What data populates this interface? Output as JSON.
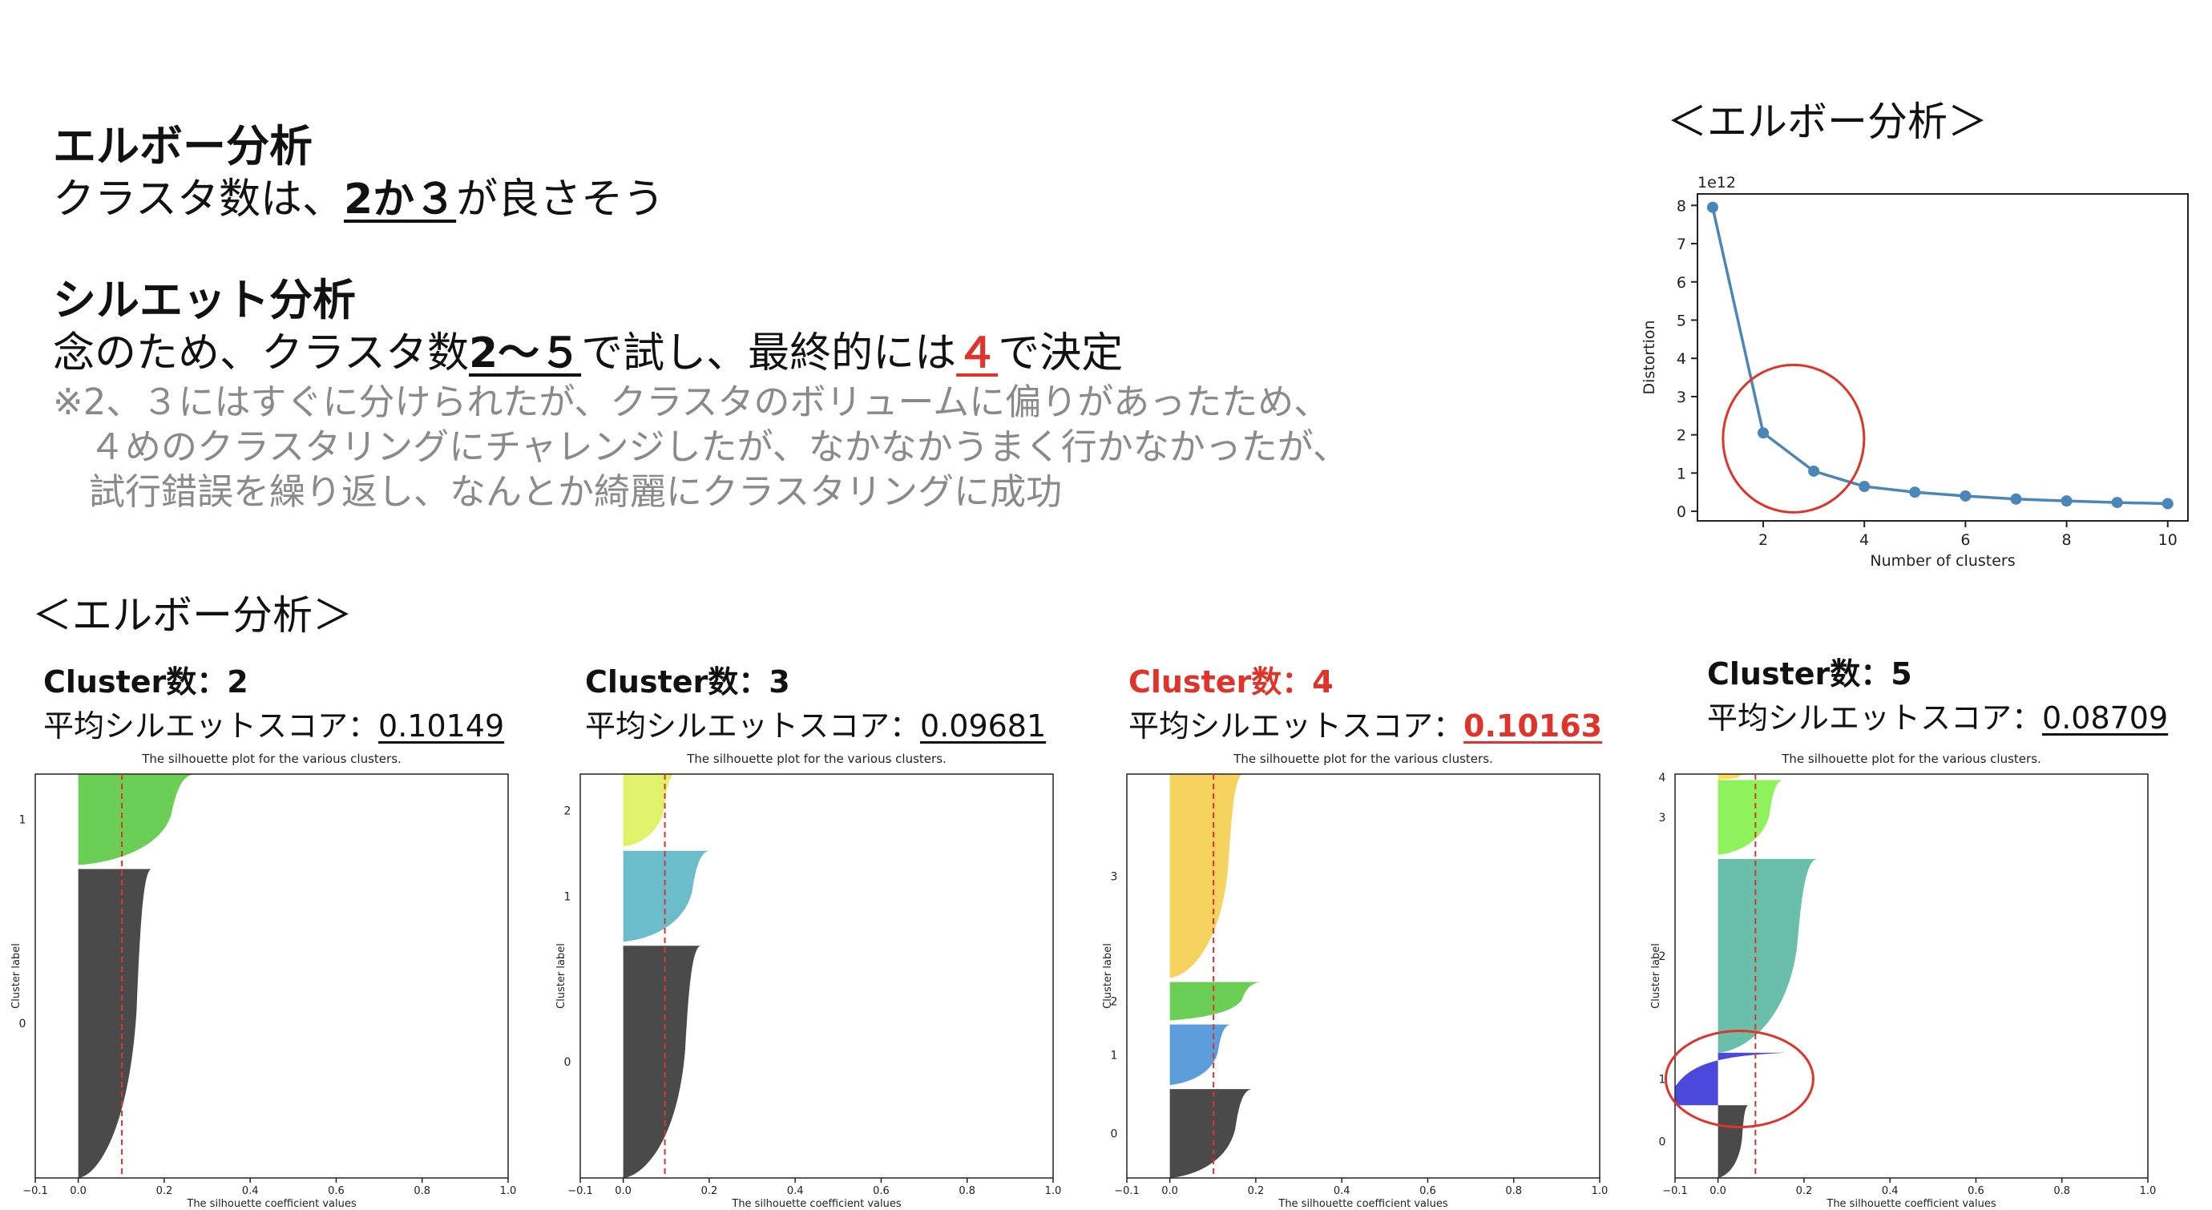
{
  "elbow_title": "エルボー分析",
  "elbow_text_pre": "クラスタ数は、",
  "elbow_text_em": "2か３",
  "elbow_text_post": "が良さそう",
  "silhouette_title": "シルエット分析",
  "silhouette_text_pre": "念のため、クラスタ数",
  "silhouette_text_em": "2〜５",
  "silhouette_text_mid": "で試し、最終的には",
  "silhouette_text_final": "４",
  "silhouette_text_post": "で決定",
  "note_lines": [
    "※2、３にはすぐに分けられたが、クラスタのボリュームに偏りがあったため、",
    "　４めのクラスタリングにチャレンジしたが、なかなかうまく行かなかったが、",
    "　試行錯誤を繰り返し、なんとか綺麗にクラスタリングに成功"
  ],
  "elbow_chart_label": "＜エルボー分析＞",
  "silhouette_section_label": "＜エルボー分析＞",
  "colors": {
    "red": "#e0342a",
    "line": "#4a86b8",
    "accent_underline": "#111111"
  },
  "chart_data": [
    {
      "type": "line",
      "x": [
        1,
        2,
        3,
        4,
        5,
        6,
        7,
        8,
        9,
        10
      ],
      "y": [
        7.95,
        2.05,
        1.05,
        0.65,
        0.5,
        0.4,
        0.32,
        0.27,
        0.23,
        0.2
      ],
      "offset_label": "1e12",
      "xlabel": "Number of clusters",
      "ylabel": "Distortion",
      "xticks": [
        2,
        4,
        6,
        8,
        10
      ],
      "yticks": [
        0,
        1,
        2,
        3,
        4,
        5,
        6,
        7,
        8
      ],
      "xlim": [
        0.7,
        10.4
      ],
      "ylim": [
        -0.25,
        8.3
      ],
      "grid": false,
      "annotation": "red circle around x=2–3"
    },
    {
      "type": "area",
      "panel_title": "Cluster数：2",
      "score_label": "平均シルエットスコア：",
      "score": "0.10149",
      "highlight": false,
      "title": "The silhouette plot for the various clusters.",
      "xlabel": "The silhouette coefficient values",
      "ylabel": "Cluster label",
      "xticks": [
        "−0.1",
        "0.0",
        "0.2",
        "0.4",
        "0.6",
        "0.8",
        "1.0"
      ],
      "xlim": [
        -0.1,
        1.0
      ],
      "avg": 0.10149,
      "clusters": [
        {
          "label": "0",
          "start": 0,
          "end": 0.765,
          "max": 0.17,
          "color": "#4a4a4a",
          "neg": 0
        },
        {
          "label": "1",
          "start": 0.775,
          "end": 1.0,
          "max": 0.27,
          "color": "#6ccf55",
          "neg": 0
        }
      ]
    },
    {
      "type": "area",
      "panel_title": "Cluster数：3",
      "score_label": "平均シルエットスコア：",
      "score": "0.09681",
      "highlight": false,
      "title": "The silhouette plot for the various clusters.",
      "xlabel": "The silhouette coefficient values",
      "ylabel": "Cluster label",
      "xticks": [
        "−0.1",
        "0.0",
        "0.2",
        "0.4",
        "0.6",
        "0.8",
        "1.0"
      ],
      "xlim": [
        -0.1,
        1.0
      ],
      "avg": 0.09681,
      "clusters": [
        {
          "label": "0",
          "start": 0,
          "end": 0.575,
          "max": 0.18,
          "color": "#4a4a4a",
          "neg": 0
        },
        {
          "label": "1",
          "start": 0.585,
          "end": 0.81,
          "max": 0.2,
          "color": "#6bbdcb",
          "neg": 0
        },
        {
          "label": "2",
          "start": 0.82,
          "end": 1.0,
          "max": 0.12,
          "color": "#dff26a",
          "neg": 0
        }
      ]
    },
    {
      "type": "area",
      "panel_title": "Cluster数：4",
      "score_label": "平均シルエットスコア：",
      "score": "0.10163",
      "highlight": true,
      "title": "The silhouette plot for the various clusters.",
      "xlabel": "The silhouette coefficient values",
      "ylabel": "Cluster label",
      "xticks": [
        "−0.1",
        "0.0",
        "0.2",
        "0.4",
        "0.6",
        "0.8",
        "1.0"
      ],
      "xlim": [
        -0.1,
        1.0
      ],
      "avg": 0.10163,
      "clusters": [
        {
          "label": "0",
          "start": 0,
          "end": 0.22,
          "max": 0.19,
          "color": "#4a4a4a",
          "neg": 0
        },
        {
          "label": "1",
          "start": 0.23,
          "end": 0.38,
          "max": 0.14,
          "color": "#5b9ddb",
          "neg": 0
        },
        {
          "label": "2",
          "start": 0.39,
          "end": 0.485,
          "max": 0.21,
          "color": "#6ccf55",
          "neg": 0
        },
        {
          "label": "3",
          "start": 0.495,
          "end": 1.0,
          "max": 0.17,
          "color": "#f5d35e",
          "neg": 0
        }
      ]
    },
    {
      "type": "area",
      "panel_title": "Cluster数：5",
      "score_label": "平均シルエットスコア：",
      "score": "0.08709",
      "highlight": false,
      "title": "The silhouette plot for the various clusters.",
      "xlabel": "The silhouette coefficient values",
      "ylabel": "Cluster label",
      "xticks": [
        "−0.1",
        "0.0",
        "0.2",
        "0.4",
        "0.6",
        "0.8",
        "1.0"
      ],
      "xlim": [
        -0.1,
        1.0
      ],
      "avg": 0.08709,
      "clusters": [
        {
          "label": "0",
          "start": 0,
          "end": 0.18,
          "max": 0.07,
          "color": "#4a4a4a",
          "neg": 0
        },
        {
          "label": "1",
          "start": 0.18,
          "end": 0.31,
          "max": 0.16,
          "color": "#4a48dd",
          "neg": -0.1
        },
        {
          "label": "2",
          "start": 0.31,
          "end": 0.79,
          "max": 0.23,
          "color": "#6abfaa",
          "neg": 0
        },
        {
          "label": "3",
          "start": 0.8,
          "end": 0.985,
          "max": 0.15,
          "color": "#8ef25a",
          "neg": 0
        },
        {
          "label": "4",
          "start": 0.985,
          "end": 1.0,
          "max": 0.06,
          "color": "#ffdd55",
          "neg": 0
        }
      ],
      "annotation": "red circle around cluster 1"
    }
  ]
}
